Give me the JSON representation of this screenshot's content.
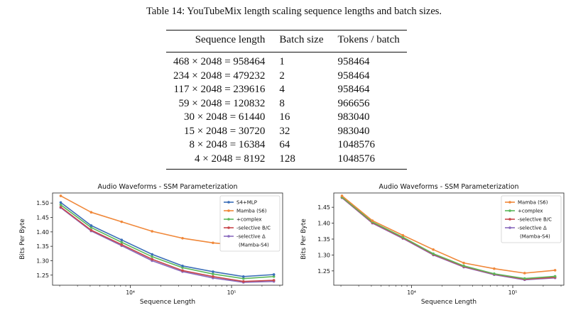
{
  "table": {
    "caption": "Table 14: YouTubeMix length scaling sequence lengths and batch sizes.",
    "headers": [
      "Sequence length",
      "Batch size",
      "Tokens / batch"
    ],
    "rows": [
      [
        "468 × 2048 = 958464",
        "1",
        "958464"
      ],
      [
        "234 × 2048 = 479232",
        "2",
        "958464"
      ],
      [
        "117 × 2048 = 239616",
        "4",
        "958464"
      ],
      [
        "59 × 2048 = 120832",
        "8",
        "966656"
      ],
      [
        "30 × 2048 = 61440",
        "16",
        "983040"
      ],
      [
        "15 × 2048 = 30720",
        "32",
        "983040"
      ],
      [
        "8 × 2048 = 16384",
        "64",
        "1048576"
      ],
      [
        "4 × 2048 = 8192",
        "128",
        "1048576"
      ]
    ]
  },
  "chart_data": [
    {
      "type": "line",
      "title": "Audio Waveforms - SSM Parameterization",
      "xlabel": "Sequence Length",
      "ylabel": "Bits Per Byte",
      "xscale": "log",
      "xlim": [
        1700,
        320000
      ],
      "ylim": [
        1.215,
        1.535
      ],
      "xticks": [
        10000,
        100000
      ],
      "xticklabels": [
        "10⁴",
        "10⁵"
      ],
      "yticks": [
        1.25,
        1.3,
        1.35,
        1.4,
        1.45,
        1.5
      ],
      "yticklabels": [
        "1.25",
        "1.30",
        "1.35",
        "1.40",
        "1.45",
        "1.50"
      ],
      "legend_position": "top-right",
      "x": [
        2048,
        4096,
        8192,
        16384,
        32768,
        65536,
        131072,
        262144
      ],
      "series": [
        {
          "name": "S4+MLP",
          "color": "#3b6eb8",
          "values": [
            1.502,
            1.422,
            1.372,
            1.322,
            1.282,
            1.262,
            1.245,
            1.252
          ]
        },
        {
          "name": "Mamba (S6)",
          "color": "#f0883a",
          "values": [
            1.525,
            1.468,
            1.435,
            1.402,
            1.378,
            1.362,
            1.352,
            1.356
          ]
        },
        {
          "name": "+complex",
          "color": "#5cb85c",
          "values": [
            1.494,
            1.415,
            1.364,
            1.314,
            1.276,
            1.254,
            1.238,
            1.245
          ]
        },
        {
          "name": "-selective B/C",
          "color": "#c9474b",
          "values": [
            1.486,
            1.406,
            1.356,
            1.305,
            1.266,
            1.245,
            1.228,
            1.232
          ]
        },
        {
          "name": "-selective Δ (Mamba-S4)",
          "color": "#8a6bbe",
          "values": [
            1.484,
            1.403,
            1.352,
            1.3,
            1.262,
            1.24,
            1.225,
            1.228
          ]
        }
      ]
    },
    {
      "type": "line",
      "title": "Audio Waveforms - SSM Parameterization",
      "xlabel": "Sequence Length",
      "ylabel": "Bits Per Byte",
      "xscale": "log",
      "xlim": [
        1700,
        320000
      ],
      "ylim": [
        1.205,
        1.495
      ],
      "xticks": [
        10000,
        100000
      ],
      "xticklabels": [
        "10⁴",
        "10⁵"
      ],
      "yticks": [
        1.25,
        1.3,
        1.35,
        1.4,
        1.45
      ],
      "yticklabels": [
        "1.25",
        "1.30",
        "1.35",
        "1.40",
        "1.45"
      ],
      "legend_position": "top-right",
      "x": [
        2048,
        4096,
        8192,
        16384,
        32768,
        65536,
        131072,
        262144
      ],
      "series": [
        {
          "name": "Mamba (S6)",
          "color": "#f0883a",
          "values": [
            1.486,
            1.408,
            1.362,
            1.317,
            1.275,
            1.257,
            1.243,
            1.252
          ]
        },
        {
          "name": "+complex",
          "color": "#5cb85c",
          "values": [
            1.482,
            1.404,
            1.356,
            1.304,
            1.266,
            1.241,
            1.226,
            1.233
          ]
        },
        {
          "name": "-selective B/C",
          "color": "#c9474b",
          "values": [
            1.481,
            1.402,
            1.354,
            1.302,
            1.264,
            1.24,
            1.224,
            1.23
          ]
        },
        {
          "name": "-selective Δ (Mamba-S4)",
          "color": "#8a6bbe",
          "values": [
            1.48,
            1.4,
            1.352,
            1.3,
            1.262,
            1.238,
            1.222,
            1.228
          ]
        }
      ]
    }
  ]
}
